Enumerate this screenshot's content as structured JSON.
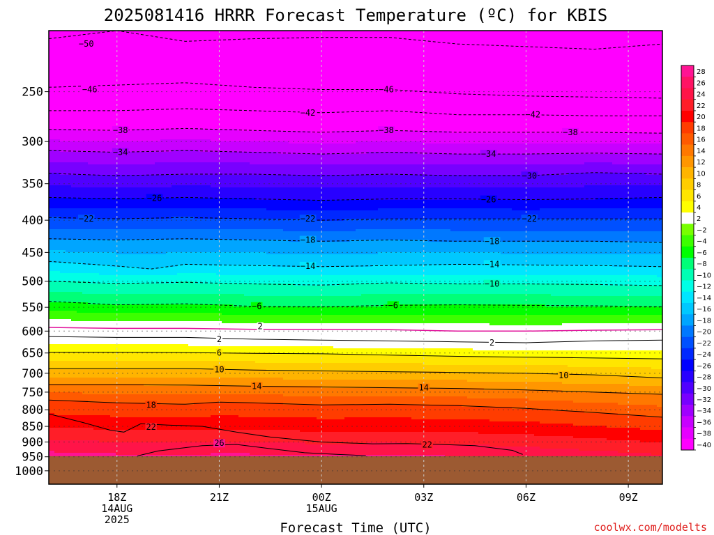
{
  "chart_data": {
    "type": "heatmap",
    "title": "2025081416 HRRR Forecast Temperature (ºC) for KBIS",
    "xlabel": "Forecast Time (UTC)",
    "ylabel": "",
    "watermark": "coolwx.com/modelts",
    "x_ticks": [
      {
        "label": "18Z",
        "sub": [
          "14AUG",
          "2025"
        ],
        "hour": 18
      },
      {
        "label": "21Z",
        "sub": [],
        "hour": 21
      },
      {
        "label": "00Z",
        "sub": [
          "15AUG"
        ],
        "hour": 24
      },
      {
        "label": "03Z",
        "sub": [],
        "hour": 27
      },
      {
        "label": "06Z",
        "sub": [],
        "hour": 30
      },
      {
        "label": "09Z",
        "sub": [],
        "hour": 33
      }
    ],
    "xlim_hours": [
      16,
      34
    ],
    "y_ticks": [
      250,
      300,
      350,
      400,
      450,
      500,
      550,
      600,
      650,
      700,
      750,
      800,
      850,
      900,
      950,
      1000
    ],
    "ylim_hPa": [
      200,
      1050
    ],
    "y_scale": "log-pressure",
    "surface_pressure_hPa": 948,
    "colorbar": {
      "levels": [
        28,
        26,
        24,
        22,
        20,
        18,
        16,
        14,
        12,
        10,
        8,
        6,
        4,
        2,
        -2,
        -4,
        -6,
        -8,
        -10,
        -12,
        -14,
        -16,
        -18,
        -20,
        -22,
        -24,
        -26,
        -28,
        -30,
        -32,
        -34,
        -36,
        -38,
        -40
      ],
      "colors": [
        "#ff1493",
        "#ff1464",
        "#ff1448",
        "#ff1e28",
        "#ff0000",
        "#ff3c00",
        "#ff5a00",
        "#ff7800",
        "#ff9600",
        "#ffb400",
        "#ffcd00",
        "#ffe600",
        "#ffff00",
        "#ffffff",
        "#78ff00",
        "#3cff00",
        "#00ff00",
        "#00ff78",
        "#00ffb4",
        "#00ffe6",
        "#00e6ff",
        "#00c8ff",
        "#00a5ff",
        "#0078ff",
        "#0050ff",
        "#0028ff",
        "#0000ff",
        "#2800ff",
        "#5000ff",
        "#7800ff",
        "#a000ff",
        "#c800ff",
        "#e600ff",
        "#ff00ff"
      ]
    },
    "contour_labels": [
      {
        "v": -50,
        "h": 17.1,
        "p": 210
      },
      {
        "v": -46,
        "h": 17.2,
        "p": 248
      },
      {
        "v": -46,
        "h": 25.9,
        "p": 248
      },
      {
        "v": -42,
        "h": 23.6,
        "p": 270
      },
      {
        "v": -42,
        "h": 30.2,
        "p": 272
      },
      {
        "v": -38,
        "h": 18.1,
        "p": 288
      },
      {
        "v": -38,
        "h": 25.9,
        "p": 288
      },
      {
        "v": -38,
        "h": 31.3,
        "p": 290
      },
      {
        "v": -34,
        "h": 18.1,
        "p": 312
      },
      {
        "v": -34,
        "h": 28.9,
        "p": 314
      },
      {
        "v": -30,
        "h": 30.1,
        "p": 340
      },
      {
        "v": -26,
        "h": 19.1,
        "p": 369
      },
      {
        "v": -26,
        "h": 28.9,
        "p": 371
      },
      {
        "v": -22,
        "h": 17.1,
        "p": 398
      },
      {
        "v": -22,
        "h": 23.6,
        "p": 398
      },
      {
        "v": -22,
        "h": 30.1,
        "p": 398
      },
      {
        "v": -18,
        "h": 23.6,
        "p": 430
      },
      {
        "v": -18,
        "h": 29.0,
        "p": 432
      },
      {
        "v": -14,
        "h": 23.6,
        "p": 473
      },
      {
        "v": -14,
        "h": 29.0,
        "p": 470
      },
      {
        "v": -10,
        "h": 29.0,
        "p": 505
      },
      {
        "v": -6,
        "h": 22.1,
        "p": 548
      },
      {
        "v": -6,
        "h": 26.1,
        "p": 546
      },
      {
        "v": 2,
        "h": 22.2,
        "p": 590
      },
      {
        "v": 2,
        "h": 21.0,
        "p": 618
      },
      {
        "v": 2,
        "h": 29.0,
        "p": 626
      },
      {
        "v": 6,
        "h": 21.0,
        "p": 650
      },
      {
        "v": 10,
        "h": 21.0,
        "p": 691
      },
      {
        "v": 10,
        "h": 31.1,
        "p": 706
      },
      {
        "v": 14,
        "h": 22.1,
        "p": 734
      },
      {
        "v": 14,
        "h": 27.0,
        "p": 738
      },
      {
        "v": 18,
        "h": 19.0,
        "p": 786
      },
      {
        "v": 22,
        "h": 19.0,
        "p": 852
      },
      {
        "v": 22,
        "h": 27.1,
        "p": 909
      },
      {
        "v": 26,
        "h": 21.0,
        "p": 904
      }
    ],
    "contours": [
      {
        "v": -50,
        "pts": [
          [
            16,
            206
          ],
          [
            17,
            203
          ],
          [
            18,
            200
          ],
          [
            20,
            208
          ],
          [
            22,
            206
          ],
          [
            24,
            205
          ],
          [
            26,
            205
          ],
          [
            28,
            210
          ],
          [
            30,
            212
          ],
          [
            32,
            214
          ],
          [
            34,
            210
          ]
        ]
      },
      {
        "v": -46,
        "pts": [
          [
            16,
            246
          ],
          [
            18,
            244
          ],
          [
            20,
            242
          ],
          [
            22,
            246
          ],
          [
            24,
            248
          ],
          [
            26,
            248
          ],
          [
            28,
            252
          ],
          [
            30,
            254
          ],
          [
            32,
            255
          ],
          [
            34,
            256
          ]
        ]
      },
      {
        "v": -42,
        "pts": [
          [
            16,
            268
          ],
          [
            18,
            268
          ],
          [
            20,
            266
          ],
          [
            22,
            268
          ],
          [
            24,
            270
          ],
          [
            26,
            268
          ],
          [
            28,
            272
          ],
          [
            30,
            272
          ],
          [
            32,
            273
          ],
          [
            34,
            273
          ]
        ]
      },
      {
        "v": -38,
        "pts": [
          [
            16,
            287
          ],
          [
            18,
            288
          ],
          [
            20,
            286
          ],
          [
            22,
            288
          ],
          [
            24,
            290
          ],
          [
            26,
            288
          ],
          [
            28,
            290
          ],
          [
            30,
            290
          ],
          [
            32,
            290
          ],
          [
            34,
            291
          ]
        ]
      },
      {
        "v": -34,
        "pts": [
          [
            16,
            310
          ],
          [
            18,
            312
          ],
          [
            20,
            310
          ],
          [
            22,
            312
          ],
          [
            24,
            314
          ],
          [
            26,
            312
          ],
          [
            28,
            314
          ],
          [
            30,
            314
          ],
          [
            32,
            313
          ],
          [
            34,
            314
          ]
        ]
      },
      {
        "v": -30,
        "pts": [
          [
            16,
            337
          ],
          [
            18,
            340
          ],
          [
            20,
            338
          ],
          [
            22,
            338
          ],
          [
            24,
            340
          ],
          [
            26,
            338
          ],
          [
            28,
            340
          ],
          [
            30,
            340
          ],
          [
            32,
            336
          ],
          [
            34,
            338
          ]
        ]
      },
      {
        "v": -26,
        "pts": [
          [
            16,
            368
          ],
          [
            18,
            370
          ],
          [
            20,
            368
          ],
          [
            22,
            370
          ],
          [
            24,
            372
          ],
          [
            26,
            370
          ],
          [
            28,
            370
          ],
          [
            30,
            371
          ],
          [
            32,
            370
          ],
          [
            34,
            368
          ]
        ]
      },
      {
        "v": -22,
        "pts": [
          [
            16,
            396
          ],
          [
            18,
            398
          ],
          [
            20,
            396
          ],
          [
            22,
            398
          ],
          [
            24,
            400
          ],
          [
            26,
            398
          ],
          [
            28,
            398
          ],
          [
            30,
            398
          ],
          [
            32,
            398
          ],
          [
            34,
            398
          ]
        ]
      },
      {
        "v": -18,
        "pts": [
          [
            16,
            428
          ],
          [
            18,
            430
          ],
          [
            20,
            428
          ],
          [
            22,
            430
          ],
          [
            24,
            432
          ],
          [
            26,
            430
          ],
          [
            28,
            432
          ],
          [
            30,
            432
          ],
          [
            32,
            432
          ],
          [
            34,
            434
          ]
        ]
      },
      {
        "v": -14,
        "pts": [
          [
            16,
            465
          ],
          [
            18,
            473
          ],
          [
            19,
            478
          ],
          [
            20,
            470
          ],
          [
            22,
            472
          ],
          [
            24,
            474
          ],
          [
            26,
            472
          ],
          [
            28,
            470
          ],
          [
            30,
            471
          ],
          [
            32,
            472
          ],
          [
            34,
            474
          ]
        ]
      },
      {
        "v": -10,
        "pts": [
          [
            16,
            500
          ],
          [
            18,
            504
          ],
          [
            20,
            502
          ],
          [
            22,
            505
          ],
          [
            24,
            507
          ],
          [
            26,
            503
          ],
          [
            28,
            505
          ],
          [
            30,
            505
          ],
          [
            32,
            506
          ],
          [
            34,
            508
          ]
        ]
      },
      {
        "v": -6,
        "pts": [
          [
            16,
            538
          ],
          [
            18,
            545
          ],
          [
            20,
            543
          ],
          [
            22,
            548
          ],
          [
            24,
            549
          ],
          [
            26,
            546
          ],
          [
            28,
            545
          ],
          [
            30,
            546
          ],
          [
            32,
            547
          ],
          [
            34,
            549
          ]
        ]
      },
      {
        "v": 2,
        "pts": [
          [
            16,
            612
          ],
          [
            18,
            614
          ],
          [
            20,
            614
          ],
          [
            22,
            618
          ],
          [
            24,
            620
          ],
          [
            26,
            622
          ],
          [
            28,
            624
          ],
          [
            30,
            626
          ],
          [
            32,
            622
          ],
          [
            34,
            620
          ]
        ]
      },
      {
        "v": 6,
        "pts": [
          [
            16,
            648
          ],
          [
            18,
            648
          ],
          [
            20,
            649
          ],
          [
            22,
            651
          ],
          [
            24,
            652
          ],
          [
            26,
            655
          ],
          [
            28,
            658
          ],
          [
            30,
            660
          ],
          [
            32,
            662
          ],
          [
            34,
            664
          ]
        ]
      },
      {
        "v": 10,
        "pts": [
          [
            16,
            688
          ],
          [
            18,
            688
          ],
          [
            20,
            688
          ],
          [
            22,
            692
          ],
          [
            24,
            694
          ],
          [
            26,
            696
          ],
          [
            28,
            698
          ],
          [
            30,
            700
          ],
          [
            32,
            704
          ],
          [
            34,
            712
          ]
        ]
      },
      {
        "v": 14,
        "pts": [
          [
            16,
            730
          ],
          [
            18,
            730
          ],
          [
            20,
            731
          ],
          [
            22,
            734
          ],
          [
            24,
            736
          ],
          [
            26,
            738
          ],
          [
            28,
            740
          ],
          [
            30,
            744
          ],
          [
            32,
            750
          ],
          [
            34,
            756
          ]
        ]
      },
      {
        "v": 18,
        "pts": [
          [
            16,
            772
          ],
          [
            18,
            780
          ],
          [
            20,
            784
          ],
          [
            21,
            778
          ],
          [
            22,
            780
          ],
          [
            24,
            786
          ],
          [
            26,
            784
          ],
          [
            28,
            788
          ],
          [
            30,
            796
          ],
          [
            32,
            808
          ],
          [
            34,
            822
          ]
        ]
      },
      {
        "v": 22,
        "pts": [
          [
            16,
            812
          ],
          [
            17,
            838
          ],
          [
            17.8,
            862
          ],
          [
            18.2,
            868
          ],
          [
            18.7,
            842
          ],
          [
            19.5,
            846
          ],
          [
            20.5,
            850
          ],
          [
            21.5,
            868
          ],
          [
            22.5,
            884
          ],
          [
            24,
            900
          ],
          [
            25.5,
            906
          ],
          [
            26.5,
            905
          ],
          [
            27.5,
            908
          ],
          [
            28.5,
            912
          ],
          [
            29.6,
            928
          ],
          [
            29.9,
            942
          ]
        ]
      },
      {
        "v": 26,
        "pts": [
          [
            18.6,
            947
          ],
          [
            19.2,
            930
          ],
          [
            20.5,
            912
          ],
          [
            21.5,
            908
          ],
          [
            22.2,
            918
          ],
          [
            23.5,
            936
          ],
          [
            24.5,
            942
          ],
          [
            25.3,
            946
          ]
        ]
      }
    ],
    "magenta_2_line": [
      [
        16,
        592
      ],
      [
        18,
        594
      ],
      [
        20,
        594
      ],
      [
        22,
        596
      ],
      [
        24,
        596
      ],
      [
        26,
        597
      ],
      [
        28,
        600
      ],
      [
        30,
        600
      ],
      [
        32,
        598
      ],
      [
        34,
        597
      ]
    ]
  }
}
